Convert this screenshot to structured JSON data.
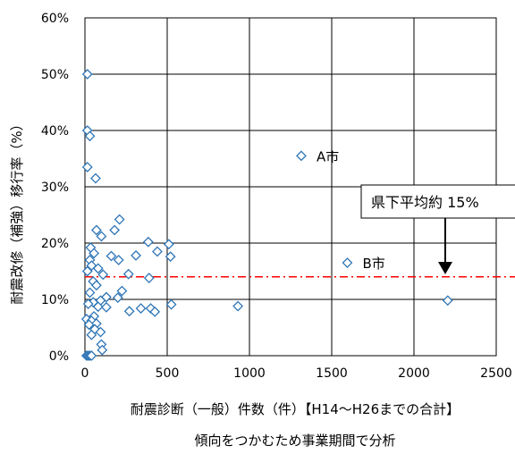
{
  "chart_data": {
    "type": "scatter",
    "xlabel": "耐震診断（一般）件数（件）【H14～H26までの合計】",
    "ylabel": "耐震改修（補強）移行率（%）",
    "caption": "傾向をつかむため事業期間で分析",
    "xlim": [
      0,
      2500
    ],
    "ylim": [
      0,
      60
    ],
    "x_ticks": [
      0,
      500,
      1000,
      1500,
      2000,
      2500
    ],
    "y_ticks": [
      0,
      10,
      20,
      30,
      40,
      50,
      60
    ],
    "x_tick_labels": [
      "0",
      "500",
      "1000",
      "1500",
      "2000",
      "2500"
    ],
    "y_tick_labels": [
      "0%",
      "10%",
      "20%",
      "30%",
      "40%",
      "50%",
      "60%"
    ],
    "grid": true,
    "marker": "diamond-open",
    "marker_color": "#2E75B6",
    "reference_line": {
      "y": 14,
      "color": "#FF0000",
      "style": "dash-dot"
    },
    "callout_text": "県下平均約 15%",
    "labeled_points": [
      {
        "label": "A市",
        "x": 1315,
        "y": 35.5
      },
      {
        "label": "B市",
        "x": 1595,
        "y": 16.5
      }
    ],
    "points": [
      {
        "x": 15,
        "y": 50
      },
      {
        "x": 15,
        "y": 40
      },
      {
        "x": 30,
        "y": 39
      },
      {
        "x": 15,
        "y": 33.5
      },
      {
        "x": 65,
        "y": 31.5
      },
      {
        "x": 210,
        "y": 24.2
      },
      {
        "x": 70,
        "y": 22.3
      },
      {
        "x": 180,
        "y": 22.3
      },
      {
        "x": 100,
        "y": 21.2
      },
      {
        "x": 35,
        "y": 19.2
      },
      {
        "x": 55,
        "y": 18.2
      },
      {
        "x": 385,
        "y": 20.2
      },
      {
        "x": 510,
        "y": 19.8
      },
      {
        "x": 440,
        "y": 18.5
      },
      {
        "x": 520,
        "y": 17.6
      },
      {
        "x": 310,
        "y": 17.8
      },
      {
        "x": 160,
        "y": 17.7
      },
      {
        "x": 205,
        "y": 17.0
      },
      {
        "x": 30,
        "y": 17.0
      },
      {
        "x": 40,
        "y": 16.0
      },
      {
        "x": 80,
        "y": 15.5
      },
      {
        "x": 15,
        "y": 15.0
      },
      {
        "x": 265,
        "y": 14.5
      },
      {
        "x": 110,
        "y": 14.4
      },
      {
        "x": 390,
        "y": 13.8
      },
      {
        "x": 50,
        "y": 13.2
      },
      {
        "x": 70,
        "y": 12.5
      },
      {
        "x": 225,
        "y": 11.5
      },
      {
        "x": 30,
        "y": 11.2
      },
      {
        "x": 130,
        "y": 10.4
      },
      {
        "x": 200,
        "y": 10.3
      },
      {
        "x": 95,
        "y": 9.8
      },
      {
        "x": 50,
        "y": 9.5
      },
      {
        "x": 20,
        "y": 9.2
      },
      {
        "x": 525,
        "y": 9.1
      },
      {
        "x": 930,
        "y": 8.8
      },
      {
        "x": 80,
        "y": 8.7
      },
      {
        "x": 130,
        "y": 8.6
      },
      {
        "x": 340,
        "y": 8.4
      },
      {
        "x": 400,
        "y": 8.4
      },
      {
        "x": 270,
        "y": 7.9
      },
      {
        "x": 425,
        "y": 7.8
      },
      {
        "x": 55,
        "y": 7.0
      },
      {
        "x": 10,
        "y": 6.5
      },
      {
        "x": 40,
        "y": 6.2
      },
      {
        "x": 70,
        "y": 5.7
      },
      {
        "x": 25,
        "y": 5.5
      },
      {
        "x": 60,
        "y": 4.7
      },
      {
        "x": 95,
        "y": 4.2
      },
      {
        "x": 40,
        "y": 3.7
      },
      {
        "x": 100,
        "y": 2.0
      },
      {
        "x": 105,
        "y": 1.0
      },
      {
        "x": 10,
        "y": 0
      },
      {
        "x": 20,
        "y": 0
      },
      {
        "x": 30,
        "y": 0
      },
      {
        "x": 40,
        "y": 0
      },
      {
        "x": 2205,
        "y": 9.8
      }
    ]
  }
}
